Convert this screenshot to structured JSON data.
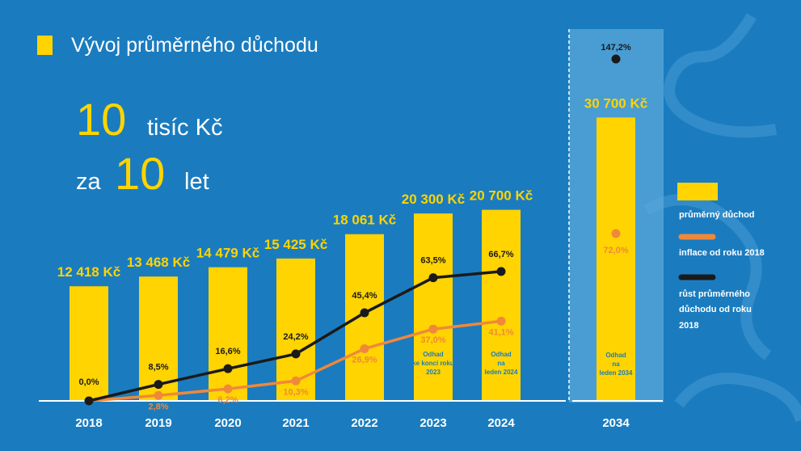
{
  "title": "Vývoj průměrného důchodu",
  "headline": {
    "big1": "10",
    "unit1": "tisíc Kč",
    "word": "za",
    "big2": "10",
    "unit2": "let"
  },
  "legend": {
    "bar": "průměrný důchod",
    "orange": "inflace od roku 2018",
    "black": [
      "růst průměrného",
      "důchodu od roku",
      "2018"
    ]
  },
  "colors": {
    "background": "#1a7cbf",
    "bar": "#ffd400",
    "inflation": "#f0883a",
    "growth": "#1a1a1a",
    "highlight": "#5aa8da"
  },
  "chart_data": {
    "type": "bar",
    "categories": [
      "2018",
      "2019",
      "2020",
      "2021",
      "2022",
      "2023",
      "2024",
      "2034"
    ],
    "values": [
      12418,
      13468,
      14479,
      15425,
      18061,
      20300,
      20700,
      30700
    ],
    "value_labels": [
      "12 418 Kč",
      "13 468 Kč",
      "14 479 Kč",
      "15 425 Kč",
      "18 061 Kč",
      "20 300 Kč",
      "20 700 Kč",
      "30 700 Kč"
    ],
    "series": [
      {
        "name": "inflace od roku 2018",
        "type": "line",
        "values": [
          0,
          2.8,
          6.2,
          10.3,
          26.9,
          37.0,
          41.1,
          72.0
        ],
        "labels": [
          "",
          "2,8%",
          "6,2%",
          "10,3%",
          "26,9%",
          "37,0%",
          "41,1%",
          "72,0%"
        ]
      },
      {
        "name": "růst průměrného důchodu od roku 2018",
        "type": "line",
        "values": [
          0,
          8.5,
          16.6,
          24.2,
          45.4,
          63.5,
          66.7,
          147.2
        ],
        "labels": [
          "0,0%",
          "8,5%",
          "16,6%",
          "24,2%",
          "45,4%",
          "63,5%",
          "66,7%",
          "147,2%"
        ]
      }
    ],
    "annotations": [
      {
        "category": "2023",
        "lines": [
          "Odhad",
          "ke konci roku",
          "2023"
        ]
      },
      {
        "category": "2024",
        "lines": [
          "Odhad",
          "na",
          "leden 2024"
        ]
      },
      {
        "category": "2034",
        "lines": [
          "Odhad",
          "na",
          "leden 2034"
        ]
      }
    ],
    "highlighted_category": "2034"
  }
}
